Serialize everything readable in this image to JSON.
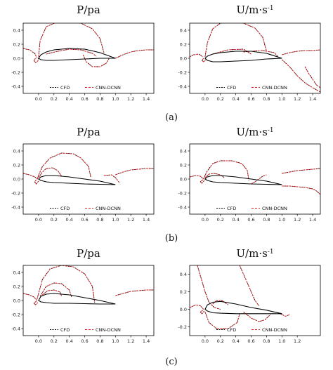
{
  "figure_labels": [
    "(a)",
    "(b)",
    "(c)"
  ],
  "colors": {
    "cfd": "#000000",
    "cnn": "#e41a1c",
    "axis": "#000000"
  },
  "chart_data": [
    {
      "type": "line",
      "title": "P/pa",
      "xlim": [
        -0.2,
        1.5
      ],
      "ylim": [
        -0.5,
        0.5
      ],
      "xticks": [
        "0.0",
        "0.2",
        "0.4",
        "0.6",
        "0.8",
        "1.0",
        "1.2",
        "1.4"
      ],
      "xtick_values": [
        0,
        0.2,
        0.4,
        0.6,
        0.8,
        1.0,
        1.2,
        1.4
      ],
      "yticks": [
        "-0.4",
        "-0.2",
        "0.0",
        "0.2",
        "0.4"
      ],
      "ytick_values": [
        -0.4,
        -0.2,
        0,
        0.2,
        0.4
      ],
      "legend": {
        "position": "bottom-center",
        "entries": [
          "CFD",
          "CNN-DCNN"
        ]
      },
      "airfoil": {
        "x": [
          1.0,
          0.8,
          0.6,
          0.4,
          0.2,
          0.1,
          0.03,
          0.0,
          0.03,
          0.1,
          0.2,
          0.4,
          0.6,
          0.8,
          1.0
        ],
        "y": [
          0.0,
          0.08,
          0.13,
          0.14,
          0.12,
          0.09,
          0.05,
          0.0,
          -0.02,
          -0.03,
          -0.03,
          -0.02,
          -0.01,
          0.0,
          0.0
        ]
      },
      "contours": [
        {
          "x": [
            0.0,
            0.02,
            0.1,
            0.25,
            0.4,
            0.55,
            0.7,
            0.8,
            0.85
          ],
          "y": [
            0.02,
            0.25,
            0.45,
            0.52,
            0.53,
            0.5,
            0.42,
            0.28,
            0.08
          ]
        },
        {
          "x": [
            0.1,
            0.25,
            0.4,
            0.55,
            0.7,
            0.75
          ],
          "y": [
            0.06,
            0.1,
            0.13,
            0.12,
            0.07,
            0.03
          ]
        },
        {
          "x": [
            0.58,
            0.62,
            0.7,
            0.8,
            0.88,
            0.92
          ],
          "y": [
            0.05,
            -0.05,
            -0.12,
            -0.12,
            -0.07,
            0.0
          ]
        },
        {
          "x": [
            1.0,
            1.1,
            1.2,
            1.3,
            1.4,
            1.5
          ],
          "y": [
            0.0,
            0.05,
            0.09,
            0.11,
            0.12,
            0.12
          ]
        },
        {
          "x": [
            -0.2,
            -0.12,
            -0.05,
            -0.02
          ],
          "y": [
            0.14,
            0.12,
            0.07,
            0.0
          ]
        },
        {
          "x": [
            -0.04,
            -0.06,
            -0.04,
            -0.01,
            0.0
          ],
          "y": [
            0.0,
            -0.03,
            -0.06,
            -0.04,
            0.0
          ]
        }
      ]
    },
    {
      "type": "line",
      "title": "U/m·s",
      "xlim": [
        -0.2,
        1.5
      ],
      "ylim": [
        -0.5,
        0.5
      ],
      "xticks": [
        "0.0",
        "0.2",
        "0.4",
        "0.6",
        "0.8",
        "1.0",
        "1.2",
        "1.4"
      ],
      "xtick_values": [
        0,
        0.2,
        0.4,
        0.6,
        0.8,
        1.0,
        1.2,
        1.4
      ],
      "yticks": [
        "-0.4",
        "-0.2",
        "0.0",
        "0.2",
        "0.4"
      ],
      "ytick_values": [
        -0.4,
        -0.2,
        0,
        0.2,
        0.4
      ],
      "legend": {
        "position": "bottom-center",
        "entries": [
          "CFD",
          "CNN-DCNN"
        ]
      },
      "airfoil": {
        "x": [
          1.0,
          0.8,
          0.6,
          0.4,
          0.2,
          0.1,
          0.03,
          0.0,
          0.03,
          0.1,
          0.2,
          0.4,
          0.6,
          0.8,
          1.0
        ],
        "y": [
          0.0,
          0.07,
          0.1,
          0.1,
          0.08,
          0.06,
          0.03,
          0.0,
          -0.03,
          -0.05,
          -0.05,
          -0.04,
          -0.03,
          -0.01,
          0.0
        ]
      },
      "contours": [
        {
          "x": [
            0.0,
            0.03,
            0.1,
            0.2,
            0.35,
            0.5,
            0.65,
            0.75,
            0.8
          ],
          "y": [
            0.02,
            0.22,
            0.42,
            0.5,
            0.52,
            0.5,
            0.43,
            0.3,
            0.1
          ]
        },
        {
          "x": [
            0.1,
            0.3,
            0.5,
            0.6
          ],
          "y": [
            0.06,
            0.12,
            0.13,
            0.06
          ]
        },
        {
          "x": [
            0.5,
            0.6,
            0.75,
            0.9,
            0.95
          ],
          "y": [
            0.09,
            0.1,
            0.11,
            0.08,
            0.02
          ]
        },
        {
          "x": [
            -0.2,
            -0.15,
            -0.08,
            -0.03
          ],
          "y": [
            0.02,
            0.05,
            0.06,
            0.02
          ]
        },
        {
          "x": [
            -0.02,
            -0.04,
            -0.02,
            0.01
          ],
          "y": [
            0.0,
            -0.03,
            -0.05,
            -0.02
          ]
        },
        {
          "x": [
            1.0,
            1.1,
            1.2,
            1.3,
            1.4,
            1.5
          ],
          "y": [
            0.05,
            0.08,
            0.1,
            0.11,
            0.11,
            0.12
          ]
        },
        {
          "x": [
            1.0,
            1.1,
            1.2,
            1.3,
            1.4,
            1.5
          ],
          "y": [
            -0.02,
            -0.12,
            -0.25,
            -0.35,
            -0.42,
            -0.48
          ]
        },
        {
          "x": [
            1.3,
            1.35,
            1.4,
            1.45,
            1.5
          ],
          "y": [
            -0.12,
            -0.22,
            -0.3,
            -0.38,
            -0.42
          ]
        }
      ]
    },
    {
      "type": "line",
      "title": "P/pa",
      "xlim": [
        -0.2,
        1.5
      ],
      "ylim": [
        -0.5,
        0.5
      ],
      "xticks": [
        "0.0",
        "0.2",
        "0.4",
        "0.6",
        "0.8",
        "1.0",
        "1.2",
        "1.4"
      ],
      "xtick_values": [
        0,
        0.2,
        0.4,
        0.6,
        0.8,
        1.0,
        1.2,
        1.4
      ],
      "yticks": [
        "-0.4",
        "-0.2",
        "0.0",
        "0.2",
        "0.4"
      ],
      "ytick_values": [
        -0.4,
        -0.2,
        0,
        0.2,
        0.4
      ],
      "legend": {
        "position": "bottom-center",
        "entries": [
          "CFD",
          "CNN-DCNN"
        ]
      },
      "airfoil": {
        "x": [
          1.0,
          0.8,
          0.6,
          0.4,
          0.2,
          0.1,
          0.03,
          0.0,
          0.03,
          0.1,
          0.2,
          0.4,
          0.6,
          0.8,
          1.0
        ],
        "y": [
          -0.08,
          -0.03,
          0.0,
          0.03,
          0.05,
          0.05,
          0.03,
          0.0,
          -0.02,
          -0.04,
          -0.05,
          -0.06,
          -0.07,
          -0.075,
          -0.08
        ]
      },
      "contours": [
        {
          "x": [
            -0.02,
            0.05,
            0.15,
            0.3,
            0.45,
            0.55,
            0.65,
            0.68
          ],
          "y": [
            0.0,
            0.18,
            0.3,
            0.37,
            0.36,
            0.3,
            0.18,
            0.02
          ]
        },
        {
          "x": [
            0.0,
            0.05,
            0.1,
            0.18,
            0.25,
            0.3
          ],
          "y": [
            0.02,
            0.1,
            0.15,
            0.16,
            0.12,
            0.04
          ]
        },
        {
          "x": [
            -0.2,
            -0.12,
            -0.05,
            -0.01
          ],
          "y": [
            0.08,
            0.06,
            0.03,
            0.0
          ]
        },
        {
          "x": [
            -0.03,
            -0.05,
            -0.03,
            0.0
          ],
          "y": [
            -0.01,
            -0.04,
            -0.07,
            -0.03
          ]
        },
        {
          "x": [
            0.85,
            0.95,
            1.0,
            1.05
          ],
          "y": [
            0.05,
            0.06,
            0.02,
            -0.05
          ]
        },
        {
          "x": [
            1.0,
            1.1,
            1.2,
            1.3,
            1.4,
            1.5
          ],
          "y": [
            0.06,
            0.1,
            0.13,
            0.14,
            0.15,
            0.15
          ]
        }
      ]
    },
    {
      "type": "line",
      "title": "U/m·s",
      "xlim": [
        -0.2,
        1.5
      ],
      "ylim": [
        -0.5,
        0.5
      ],
      "xticks": [
        "0.0",
        "0.2",
        "0.4",
        "0.6",
        "0.8",
        "1.0",
        "1.2",
        "1.4"
      ],
      "xtick_values": [
        0,
        0.2,
        0.4,
        0.6,
        0.8,
        1.0,
        1.2,
        1.4
      ],
      "yticks": [
        "-0.4",
        "-0.2",
        "0.0",
        "0.2",
        "0.4"
      ],
      "ytick_values": [
        -0.4,
        -0.2,
        0,
        0.2,
        0.4
      ],
      "legend": {
        "position": "bottom-center",
        "entries": [
          "CFD",
          "CNN-DCNN"
        ]
      },
      "airfoil": {
        "x": [
          1.0,
          0.8,
          0.6,
          0.4,
          0.2,
          0.1,
          0.03,
          0.0,
          0.03,
          0.1,
          0.2,
          0.4,
          0.6,
          0.8,
          1.0
        ],
        "y": [
          -0.08,
          -0.03,
          0.0,
          0.03,
          0.05,
          0.05,
          0.03,
          0.0,
          -0.02,
          -0.04,
          -0.05,
          -0.06,
          -0.07,
          -0.075,
          -0.08
        ]
      },
      "contours": [
        {
          "x": [
            -0.02,
            0.02,
            0.1,
            0.2,
            0.35,
            0.48,
            0.55,
            0.57
          ],
          "y": [
            0.0,
            0.1,
            0.22,
            0.26,
            0.26,
            0.22,
            0.12,
            -0.02
          ]
        },
        {
          "x": [
            0.0,
            0.05,
            0.12,
            0.2,
            0.25
          ],
          "y": [
            0.02,
            0.07,
            0.08,
            0.06,
            0.02
          ]
        },
        {
          "x": [
            -0.2,
            -0.12,
            -0.06,
            -0.02
          ],
          "y": [
            0.03,
            0.05,
            0.04,
            0.0
          ]
        },
        {
          "x": [
            -0.03,
            -0.06,
            -0.04,
            -0.01
          ],
          "y": [
            -0.01,
            -0.04,
            -0.06,
            -0.02
          ]
        },
        {
          "x": [
            0.6,
            0.65,
            0.7,
            0.75,
            0.8
          ],
          "y": [
            -0.07,
            -0.04,
            0.0,
            0.04,
            0.06
          ]
        },
        {
          "x": [
            1.0,
            1.1,
            1.2,
            1.3,
            1.4,
            1.5
          ],
          "y": [
            0.08,
            0.1,
            0.12,
            0.13,
            0.14,
            0.15
          ]
        },
        {
          "x": [
            1.0,
            1.1,
            1.2,
            1.3,
            1.4,
            1.45,
            1.5
          ],
          "y": [
            -0.1,
            -0.1,
            -0.11,
            -0.12,
            -0.14,
            -0.17,
            -0.22
          ]
        }
      ]
    },
    {
      "type": "line",
      "title": "P/pa",
      "xlim": [
        -0.2,
        1.5
      ],
      "ylim": [
        -0.5,
        0.5
      ],
      "xticks": [
        "0.0",
        "0.2",
        "0.4",
        "0.6",
        "0.8",
        "1.0",
        "1.2",
        "1.4"
      ],
      "xtick_values": [
        0,
        0.2,
        0.4,
        0.6,
        0.8,
        1.0,
        1.2,
        1.4
      ],
      "yticks": [
        "-0.4",
        "-0.2",
        "0.0",
        "0.2",
        "0.4"
      ],
      "ytick_values": [
        -0.4,
        -0.2,
        0,
        0.2,
        0.4
      ],
      "legend": {
        "position": "bottom-center",
        "entries": [
          "CFD",
          "CNN-DCNN"
        ]
      },
      "airfoil": {
        "x": [
          1.0,
          0.8,
          0.6,
          0.4,
          0.2,
          0.1,
          0.03,
          0.0,
          0.03,
          0.1,
          0.2,
          0.4,
          0.6,
          0.8,
          1.0
        ],
        "y": [
          -0.05,
          0.0,
          0.04,
          0.08,
          0.1,
          0.09,
          0.06,
          0.0,
          -0.02,
          -0.03,
          -0.04,
          -0.04,
          -0.045,
          -0.05,
          -0.05
        ]
      },
      "contours": [
        {
          "x": [
            -0.02,
            0.05,
            0.15,
            0.3,
            0.45,
            0.6,
            0.7,
            0.73
          ],
          "y": [
            0.02,
            0.3,
            0.45,
            0.5,
            0.48,
            0.38,
            0.2,
            -0.03
          ]
        },
        {
          "x": [
            0.02,
            0.1,
            0.2,
            0.3,
            0.4,
            0.43
          ],
          "y": [
            0.06,
            0.2,
            0.25,
            0.24,
            0.15,
            0.05
          ]
        },
        {
          "x": [
            0.05,
            0.12,
            0.2,
            0.28,
            0.3
          ],
          "y": [
            0.08,
            0.14,
            0.15,
            0.12,
            0.06
          ]
        },
        {
          "x": [
            -0.2,
            -0.12,
            -0.06,
            -0.02
          ],
          "y": [
            0.1,
            0.08,
            0.05,
            0.0
          ]
        },
        {
          "x": [
            -0.03,
            -0.06,
            -0.04,
            -0.01
          ],
          "y": [
            -0.01,
            -0.04,
            -0.06,
            -0.03
          ]
        },
        {
          "x": [
            1.0,
            1.1,
            1.2,
            1.3,
            1.4,
            1.5
          ],
          "y": [
            0.07,
            0.1,
            0.13,
            0.14,
            0.15,
            0.15
          ]
        }
      ]
    },
    {
      "type": "line",
      "title": "U/m·s",
      "xlim": [
        -0.2,
        1.5
      ],
      "ylim": [
        -0.3,
        0.5
      ],
      "xticks": [
        "0.0",
        "0.2",
        "0.4",
        "0.6",
        "0.8",
        "1.0",
        "1.2"
      ],
      "xtick_values": [
        0,
        0.2,
        0.4,
        0.6,
        0.8,
        1.0,
        1.2
      ],
      "yticks": [
        "-0.2",
        "0.0",
        "0.2",
        "0.4"
      ],
      "ytick_values": [
        -0.2,
        0,
        0.2,
        0.4
      ],
      "legend": {
        "position": "bottom-center",
        "entries": [
          "CFD",
          "CNN-DCNN"
        ]
      },
      "airfoil": {
        "x": [
          1.0,
          0.8,
          0.6,
          0.4,
          0.2,
          0.1,
          0.03,
          0.0,
          0.03,
          0.1,
          0.2,
          0.4,
          0.6,
          0.8,
          1.0
        ],
        "y": [
          -0.05,
          -0.01,
          0.02,
          0.06,
          0.09,
          0.08,
          0.05,
          0.0,
          -0.02,
          -0.04,
          -0.045,
          -0.05,
          -0.05,
          -0.05,
          -0.05
        ]
      },
      "contours": [
        {
          "x": [
            -0.1,
            -0.05,
            0.0,
            0.05,
            0.12,
            0.2
          ],
          "y": [
            0.5,
            0.35,
            0.2,
            0.08,
            0.02,
            0.0
          ]
        },
        {
          "x": [
            0.45,
            0.5,
            0.55,
            0.6,
            0.65,
            0.7
          ],
          "y": [
            0.5,
            0.4,
            0.3,
            0.2,
            0.1,
            0.04
          ]
        },
        {
          "x": [
            0.1,
            0.15,
            0.22,
            0.3
          ],
          "y": [
            0.06,
            0.1,
            0.1,
            0.05
          ]
        },
        {
          "x": [
            0.0,
            0.05,
            0.15,
            0.3,
            0.42,
            0.45
          ],
          "y": [
            -0.03,
            -0.15,
            -0.22,
            -0.22,
            -0.15,
            -0.05
          ]
        },
        {
          "x": [
            0.5,
            0.6,
            0.7,
            0.78,
            0.85
          ],
          "y": [
            -0.03,
            -0.1,
            -0.14,
            -0.12,
            -0.06
          ]
        },
        {
          "x": [
            -0.2,
            -0.12,
            -0.06,
            -0.02
          ],
          "y": [
            0.02,
            0.05,
            0.04,
            0.0
          ]
        },
        {
          "x": [
            -0.03,
            -0.06,
            -0.04,
            -0.01
          ],
          "y": [
            -0.01,
            -0.03,
            -0.05,
            -0.02
          ]
        },
        {
          "x": [
            0.95,
            1.0,
            1.05,
            1.1
          ],
          "y": [
            -0.04,
            -0.06,
            -0.08,
            -0.06
          ]
        }
      ]
    }
  ]
}
